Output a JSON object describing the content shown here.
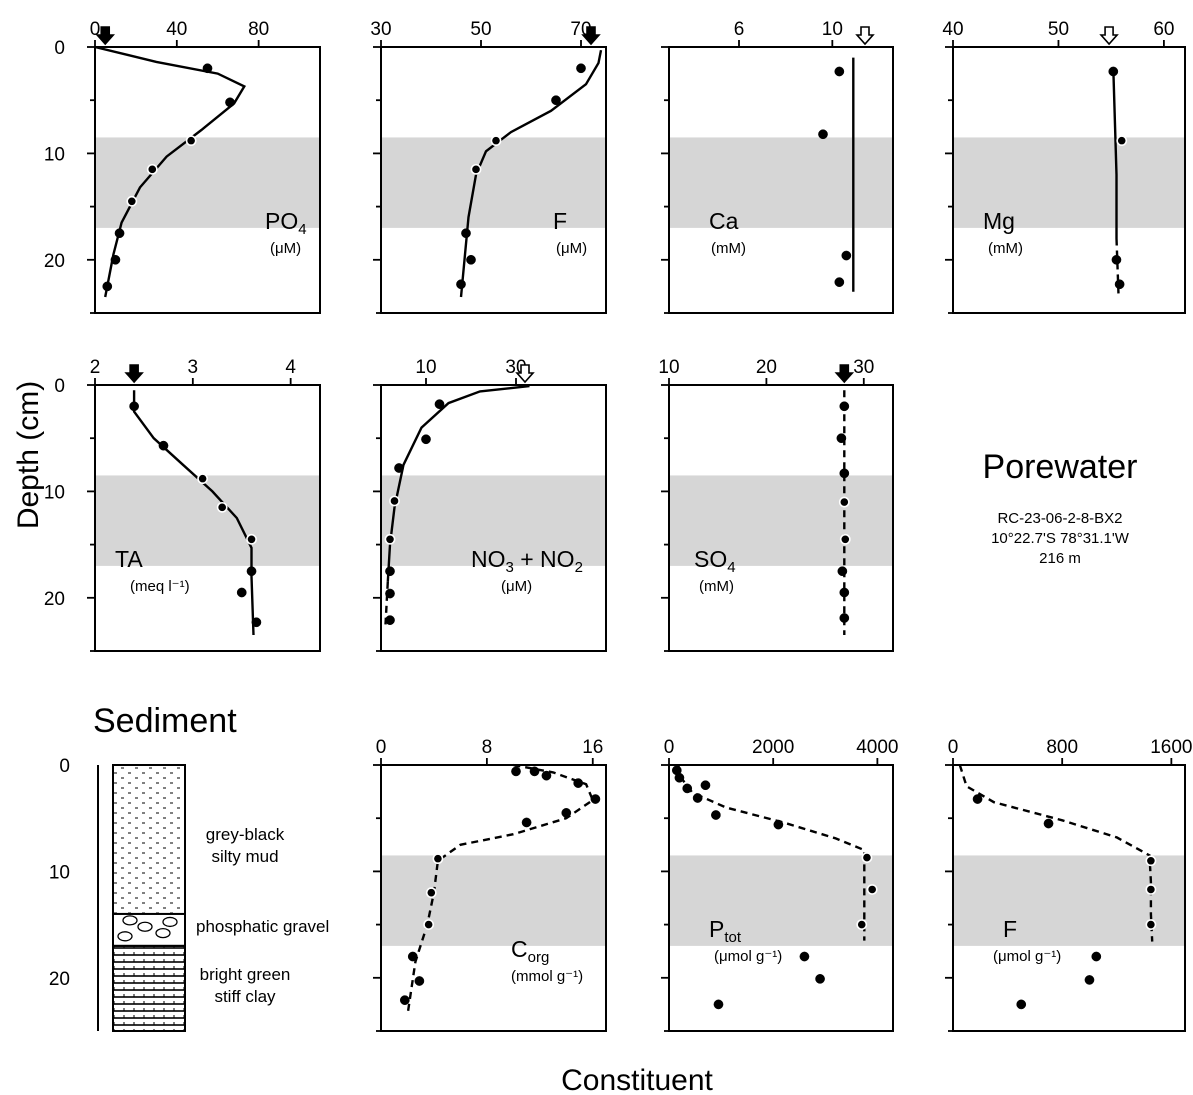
{
  "labels": {
    "ylabel": "Depth (cm)",
    "xlabel": "Constituent",
    "porewater": "Porewater",
    "sediment": "Sediment",
    "station": [
      "RC-23-06-2-8-BX2",
      "10°22.7'S 78°31.1'W",
      "216 m"
    ]
  },
  "lithology": [
    {
      "label": [
        "grey-black",
        "silty mud"
      ],
      "top": 0,
      "bottom": 14
    },
    {
      "label": [
        "phosphatic gravel"
      ],
      "top": 14,
      "bottom": 17
    },
    {
      "label": [
        "bright green",
        "stiff clay"
      ],
      "top": 17,
      "bottom": 25
    }
  ],
  "chart_data": [
    {
      "type": "line",
      "label": "PO4",
      "sub": "4",
      "base": "PO",
      "units": "(μM)",
      "xticks": [
        0,
        40,
        80
      ],
      "xlim": [
        0,
        110
      ],
      "ylim": [
        0,
        25
      ],
      "yticks": [
        0,
        10,
        20
      ],
      "shade": [
        8.5,
        17
      ],
      "bottom_water": 5,
      "bottom_water_style": "filled",
      "points": [
        [
          55,
          2
        ],
        [
          66,
          5.2
        ],
        [
          47,
          8.8
        ],
        [
          28,
          11.5
        ],
        [
          18,
          14.5
        ],
        [
          12,
          17.5
        ],
        [
          10,
          20
        ],
        [
          6,
          22.5
        ]
      ],
      "curve": [
        [
          0,
          0
        ],
        [
          30,
          1.4
        ],
        [
          60,
          2.5
        ],
        [
          73,
          3.7
        ],
        [
          68,
          5.3
        ],
        [
          52,
          7.8
        ],
        [
          35,
          10.3
        ],
        [
          22,
          13.2
        ],
        [
          13,
          16.5
        ],
        [
          9,
          19.5
        ],
        [
          5,
          23.5
        ]
      ],
      "curve_style": "solid"
    },
    {
      "type": "line",
      "label": "F",
      "units": "(μM)",
      "xticks": [
        30,
        50,
        70
      ],
      "xlim": [
        30,
        75
      ],
      "ylim": [
        0,
        25
      ],
      "yticks": [
        0,
        10,
        20
      ],
      "shade": [
        8.5,
        17
      ],
      "bottom_water": 72,
      "bottom_water_style": "filled",
      "points": [
        [
          70,
          2
        ],
        [
          65,
          5
        ],
        [
          53,
          8.8
        ],
        [
          49,
          11.5
        ],
        [
          47,
          17.5
        ],
        [
          48,
          20
        ],
        [
          46,
          22.3
        ]
      ],
      "curve": [
        [
          74,
          0.3
        ],
        [
          73.5,
          1.5
        ],
        [
          71,
          3.5
        ],
        [
          64,
          6
        ],
        [
          56,
          8
        ],
        [
          51,
          9.8
        ],
        [
          49,
          12
        ],
        [
          47.5,
          16
        ],
        [
          46.7,
          20
        ],
        [
          46,
          23.5
        ]
      ],
      "curve_style": "solid"
    },
    {
      "type": "line",
      "label": "Ca",
      "units": "(mM)",
      "xticks": [
        6,
        10
      ],
      "xlim": [
        3,
        12.6
      ],
      "ylim": [
        0,
        25
      ],
      "yticks": [
        0,
        10,
        20
      ],
      "shade": [
        8.5,
        17
      ],
      "bottom_water": 11.4,
      "bottom_water_style": "open",
      "points": [
        [
          10.3,
          2.3
        ],
        [
          9.6,
          8.2
        ],
        [
          10.6,
          19.6
        ],
        [
          10.3,
          22.1
        ]
      ],
      "curve": [
        [
          10.9,
          1
        ],
        [
          10.9,
          23
        ]
      ],
      "curve_style": "solid"
    },
    {
      "type": "line",
      "label": "Mg",
      "units": "(mM)",
      "xticks": [
        40,
        50,
        60
      ],
      "xlim": [
        40,
        62
      ],
      "ylim": [
        0,
        25
      ],
      "yticks": [
        0,
        10,
        20
      ],
      "shade": [
        8.5,
        17
      ],
      "bottom_water": 54.8,
      "bottom_water_style": "open",
      "points": [
        [
          55.2,
          2.3
        ],
        [
          56,
          8.8
        ],
        [
          55.5,
          20
        ],
        [
          55.8,
          22.3
        ]
      ],
      "curve": [
        [
          55.2,
          2
        ],
        [
          55.5,
          12
        ],
        [
          55.5,
          18
        ]
      ],
      "curve_style": "solid",
      "curve2": [
        [
          55.5,
          18
        ],
        [
          55.7,
          23.5
        ]
      ],
      "curve2_style": "dashed"
    },
    {
      "type": "line",
      "label": "TA",
      "units": "(meq l⁻¹)",
      "xticks": [
        2,
        3,
        4
      ],
      "xlim": [
        2,
        4.3
      ],
      "ylim": [
        0,
        25
      ],
      "yticks": [
        0,
        10,
        20
      ],
      "shade": [
        8.5,
        17
      ],
      "bottom_water": 2.4,
      "bottom_water_style": "filled",
      "points": [
        [
          2.4,
          2
        ],
        [
          2.7,
          5.7
        ],
        [
          3.1,
          8.8
        ],
        [
          3.3,
          11.5
        ],
        [
          3.6,
          14.5
        ],
        [
          3.6,
          17.5
        ],
        [
          3.5,
          19.5
        ],
        [
          3.65,
          22.3
        ]
      ],
      "curve": [
        [
          2.4,
          0.5
        ],
        [
          2.4,
          2.5
        ],
        [
          2.6,
          5
        ],
        [
          2.9,
          7.5
        ],
        [
          3.2,
          10
        ],
        [
          3.45,
          12.5
        ],
        [
          3.6,
          15.3
        ],
        [
          3.6,
          18
        ],
        [
          3.62,
          23.5
        ]
      ],
      "curve_style": "solid"
    },
    {
      "type": "line",
      "label": "NO3 + NO2",
      "base": "NO",
      "units": "(μM)",
      "xticks": [
        10,
        30
      ],
      "xlim": [
        0,
        50
      ],
      "ylim": [
        0,
        25
      ],
      "yticks": [
        0,
        10,
        20
      ],
      "shade": [
        8.5,
        17
      ],
      "bottom_water": 32,
      "bottom_water_style": "open",
      "points": [
        [
          13,
          1.8
        ],
        [
          10,
          5.1
        ],
        [
          4,
          7.8
        ],
        [
          3,
          10.9
        ],
        [
          2,
          14.5
        ],
        [
          2,
          17.5
        ],
        [
          2,
          19.6
        ],
        [
          2,
          22.1
        ]
      ],
      "curve": [
        [
          33,
          0.1
        ],
        [
          22,
          0.6
        ],
        [
          15,
          1.7
        ],
        [
          9,
          4
        ],
        [
          5,
          7.5
        ],
        [
          3,
          11.5
        ],
        [
          2,
          15
        ],
        [
          1.5,
          18.5
        ]
      ],
      "curve_style": "solid",
      "curve2": [
        [
          1.5,
          18.5
        ],
        [
          1,
          22.5
        ]
      ],
      "curve2_style": "dashed"
    },
    {
      "type": "line",
      "label": "SO4",
      "base": "SO",
      "units": "(mM)",
      "xticks": [
        10,
        20,
        30
      ],
      "xlim": [
        10,
        33
      ],
      "ylim": [
        0,
        25
      ],
      "yticks": [
        0,
        10,
        20
      ],
      "shade": [
        8.5,
        17
      ],
      "bottom_water": 28,
      "bottom_water_style": "filled",
      "points": [
        [
          28,
          2
        ],
        [
          27.7,
          5
        ],
        [
          28,
          8.3
        ],
        [
          28,
          11
        ],
        [
          28.1,
          14.5
        ],
        [
          27.8,
          17.5
        ],
        [
          28,
          19.5
        ],
        [
          28,
          21.9
        ]
      ],
      "curve": [
        [
          28,
          0.5
        ],
        [
          28,
          23.5
        ]
      ],
      "curve_style": "dashed"
    },
    {
      "type": "line",
      "label": "Corg",
      "base": "C",
      "sub": "org",
      "units": "(mmol g⁻¹)",
      "xticks": [
        0,
        8,
        16
      ],
      "xlim": [
        0,
        17
      ],
      "ylim": [
        0,
        25
      ],
      "yticks": [
        0,
        10,
        20
      ],
      "shade": [
        8.5,
        17
      ],
      "bottom_water": null,
      "points": [
        [
          10.2,
          0.6
        ],
        [
          11.6,
          0.6
        ],
        [
          12.5,
          1
        ],
        [
          14.9,
          1.7
        ],
        [
          16.2,
          3.2
        ],
        [
          14,
          4.5
        ],
        [
          11,
          5.4
        ],
        [
          4.3,
          8.8
        ],
        [
          3.8,
          12
        ],
        [
          3.6,
          15
        ],
        [
          2.4,
          18
        ],
        [
          2.9,
          20.3
        ],
        [
          1.8,
          22.1
        ]
      ],
      "curve": [
        [
          10,
          0
        ],
        [
          13,
          0.7
        ],
        [
          15.5,
          1.8
        ],
        [
          16,
          3.3
        ],
        [
          14,
          5
        ],
        [
          10,
          6.5
        ],
        [
          6,
          7.5
        ],
        [
          4.3,
          9
        ],
        [
          4,
          12
        ],
        [
          3.5,
          15
        ],
        [
          2.6,
          18.5
        ],
        [
          2,
          23.5
        ]
      ],
      "curve_style": "dashed"
    },
    {
      "type": "line",
      "label": "Ptot",
      "base": "P",
      "sub": "tot",
      "units": "(μmol g⁻¹)",
      "xticks": [
        0,
        2000,
        4000
      ],
      "xlim": [
        0,
        4300
      ],
      "ylim": [
        0,
        25
      ],
      "yticks": [
        0,
        10,
        20
      ],
      "shade": [
        8.5,
        17
      ],
      "bottom_water": null,
      "points": [
        [
          150,
          0.5
        ],
        [
          200,
          1.2
        ],
        [
          350,
          2.2
        ],
        [
          550,
          3.1
        ],
        [
          700,
          1.9
        ],
        [
          900,
          4.7
        ],
        [
          2100,
          5.6
        ],
        [
          3800,
          8.7
        ],
        [
          3900,
          11.7
        ],
        [
          3700,
          15
        ],
        [
          2600,
          18
        ],
        [
          2900,
          20.1
        ],
        [
          950,
          22.5
        ]
      ],
      "curve": [
        [
          180,
          0
        ],
        [
          200,
          1
        ],
        [
          450,
          2.6
        ],
        [
          1100,
          4
        ],
        [
          2200,
          5.4
        ],
        [
          3200,
          6.9
        ],
        [
          3750,
          8
        ],
        [
          3750,
          13
        ],
        [
          3750,
          16.5
        ]
      ],
      "curve_style": "dashed"
    },
    {
      "type": "line",
      "label": "F",
      "units": "(μmol g⁻¹)",
      "xticks": [
        0,
        800,
        1600
      ],
      "xlim": [
        0,
        1700
      ],
      "ylim": [
        0,
        25
      ],
      "yticks": [
        0,
        10,
        20
      ],
      "shade": [
        8.5,
        17
      ],
      "bottom_water": null,
      "points": [
        [
          180,
          3.2
        ],
        [
          700,
          5.5
        ],
        [
          1450,
          9
        ],
        [
          1450,
          11.7
        ],
        [
          1450,
          15
        ],
        [
          1050,
          18
        ],
        [
          1000,
          20.2
        ],
        [
          500,
          22.5
        ]
      ],
      "curve": [
        [
          50,
          0
        ],
        [
          100,
          2
        ],
        [
          300,
          3.5
        ],
        [
          800,
          5.2
        ],
        [
          1200,
          6.8
        ],
        [
          1440,
          8.5
        ],
        [
          1450,
          11
        ],
        [
          1450,
          14
        ],
        [
          1460,
          16.6
        ]
      ],
      "curve_style": "dashed"
    }
  ]
}
